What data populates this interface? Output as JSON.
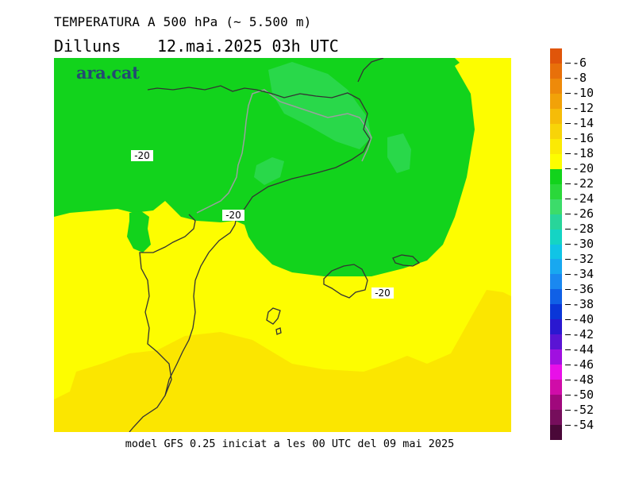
{
  "header": {
    "title": "TEMPERATURA A 500 hPa (~ 5.500 m)",
    "day": "Dilluns",
    "datetime": "12.mai.2025 03h UTC"
  },
  "logo": "ara.cat",
  "footer": "model GFS 0.25 iniciat a les 00 UTC del 09 mai 2025",
  "contour_labels": [
    "-20",
    "-20",
    "-20"
  ],
  "colorbar": {
    "labels": [
      "-6",
      "-8",
      "-10",
      "-12",
      "-14",
      "-16",
      "-18",
      "-20",
      "-22",
      "-24",
      "-26",
      "-28",
      "-30",
      "-32",
      "-34",
      "-36",
      "-38",
      "-40",
      "-42",
      "-44",
      "-46",
      "-48",
      "-50",
      "-52",
      "-54"
    ],
    "colors": [
      "#e0550a",
      "#e8700a",
      "#ee8a0a",
      "#f2a208",
      "#f6bc08",
      "#f8d408",
      "#fbea04",
      "#fdfd00",
      "#12d31c",
      "#2ad83a",
      "#3cdc6a",
      "#28d59a",
      "#14d4c4",
      "#10c4e6",
      "#18a8f0",
      "#1a88f0",
      "#1060e6",
      "#0a36d8",
      "#2a18d0",
      "#5a14d4",
      "#a010e0",
      "#e810e8",
      "#d00ca8",
      "#a0087c",
      "#760e5c",
      "#4a0838"
    ]
  },
  "map_colors": {
    "yellow": "#fdfd00",
    "dark_yellow": "#fbe600",
    "green": "#12d31c",
    "dark_green": "#2cd850",
    "coast": "#333333",
    "border": "#9aa0a0"
  }
}
